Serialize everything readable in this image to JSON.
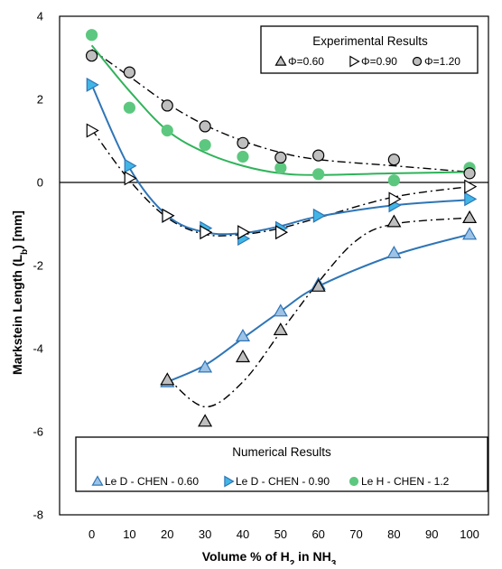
{
  "chart_data": {
    "type": "scatter",
    "xlabel_main": "Volume % of H",
    "xlabel_sub": "2",
    "xlabel_tail": " in NH",
    "xlabel_sub2": "3",
    "ylabel_main": "Markstein Length (L",
    "ylabel_sub": "b",
    "ylabel_tail": ") [mm]",
    "xlim": [
      -8.5,
      105
    ],
    "ylim": [
      -8,
      4
    ],
    "x_ticks": [
      "0",
      "10",
      "20",
      "30",
      "40",
      "50",
      "60",
      "70",
      "80",
      "90",
      "100"
    ],
    "y_ticks": [
      "4",
      "2",
      "0",
      "-2",
      "-4",
      "-6",
      "-8"
    ],
    "legends": {
      "experimental": {
        "title": "Experimental Results",
        "entries": [
          "Φ=0.60",
          "Φ=0.90",
          "Φ=1.20"
        ]
      },
      "numerical": {
        "title": "Numerical Results",
        "entries": [
          "Le D - CHEN - 0.60",
          "Le D - CHEN - 0.90",
          "Le H - CHEN - 1.2"
        ]
      }
    },
    "series": [
      {
        "name": "Φ=0.60",
        "group": "experimental",
        "marker": "triangle-up",
        "color": "#bfbfbf",
        "x": [
          20,
          30,
          40,
          50,
          60,
          80,
          100
        ],
        "y": [
          -4.75,
          -5.75,
          -4.2,
          -3.55,
          -2.5,
          -0.95,
          -0.85
        ]
      },
      {
        "name": "Φ=0.90",
        "group": "experimental",
        "marker": "triangle-right",
        "color": "#ffffff",
        "x": [
          0,
          10,
          20,
          30,
          40,
          50,
          80,
          100
        ],
        "y": [
          1.25,
          0.1,
          -0.8,
          -1.2,
          -1.2,
          -1.2,
          -0.4,
          -0.1
        ]
      },
      {
        "name": "Φ=1.20",
        "group": "experimental",
        "marker": "circle",
        "color": "#bfbfbf",
        "x": [
          0,
          10,
          20,
          30,
          40,
          50,
          60,
          80,
          100
        ],
        "y": [
          3.05,
          2.65,
          1.85,
          1.35,
          0.95,
          0.6,
          0.65,
          0.55,
          0.22
        ]
      },
      {
        "name": "Le D - CHEN - 0.60",
        "group": "numerical",
        "marker": "triangle-up",
        "color": "#9dc3e6",
        "x": [
          20,
          30,
          40,
          50,
          60,
          80,
          100
        ],
        "y": [
          -4.8,
          -4.45,
          -3.7,
          -3.1,
          -2.45,
          -1.7,
          -1.25
        ]
      },
      {
        "name": "Le D - CHEN - 0.90",
        "group": "numerical",
        "marker": "triangle-right",
        "color": "#41b6e6",
        "x": [
          0,
          10,
          20,
          30,
          40,
          50,
          60,
          80,
          100
        ],
        "y": [
          2.35,
          0.4,
          -0.8,
          -1.1,
          -1.35,
          -1.1,
          -0.8,
          -0.55,
          -0.4
        ]
      },
      {
        "name": "Le H - CHEN - 1.2",
        "group": "numerical",
        "marker": "circle",
        "color": "#5cc87f",
        "x": [
          0,
          10,
          20,
          30,
          40,
          50,
          60,
          80,
          100
        ],
        "y": [
          3.55,
          1.8,
          1.25,
          0.9,
          0.62,
          0.35,
          0.2,
          0.05,
          0.35
        ]
      }
    ],
    "curves": [
      {
        "style": "dash-dot",
        "color": "#000000",
        "of": "Φ=0.60",
        "x": [
          20,
          30,
          40,
          50,
          60,
          70,
          80,
          100
        ],
        "y": [
          -4.7,
          -5.4,
          -4.8,
          -3.6,
          -2.4,
          -1.4,
          -1.0,
          -0.85
        ]
      },
      {
        "style": "dash-dot",
        "color": "#000000",
        "of": "Φ=0.90",
        "x": [
          0,
          10,
          20,
          30,
          40,
          50,
          60,
          80,
          100
        ],
        "y": [
          1.28,
          0.05,
          -0.85,
          -1.25,
          -1.25,
          -1.1,
          -0.85,
          -0.35,
          -0.1
        ]
      },
      {
        "style": "dash-dot",
        "color": "#000000",
        "of": "Φ=1.20",
        "x": [
          0,
          10,
          20,
          30,
          40,
          50,
          60,
          80,
          100
        ],
        "y": [
          3.2,
          2.55,
          1.9,
          1.38,
          1.0,
          0.72,
          0.55,
          0.4,
          0.25
        ]
      },
      {
        "style": "solid",
        "color": "#2e75b6",
        "of": "Le D - CHEN - 0.60",
        "x": [
          20,
          30,
          40,
          50,
          60,
          80,
          100
        ],
        "y": [
          -4.8,
          -4.4,
          -3.75,
          -3.1,
          -2.5,
          -1.75,
          -1.25
        ]
      },
      {
        "style": "solid",
        "color": "#2e75b6",
        "of": "Le D - CHEN - 0.90",
        "x": [
          0,
          10,
          20,
          30,
          40,
          50,
          60,
          80,
          100
        ],
        "y": [
          2.35,
          0.35,
          -0.8,
          -1.2,
          -1.22,
          -1.05,
          -0.82,
          -0.55,
          -0.42
        ]
      },
      {
        "style": "solid",
        "color": "#2fb35a",
        "of": "Le H - CHEN - 1.2",
        "x": [
          0,
          10,
          20,
          30,
          40,
          50,
          60,
          80,
          100
        ],
        "y": [
          3.3,
          2.2,
          1.25,
          0.72,
          0.4,
          0.22,
          0.18,
          0.22,
          0.25
        ]
      }
    ]
  }
}
